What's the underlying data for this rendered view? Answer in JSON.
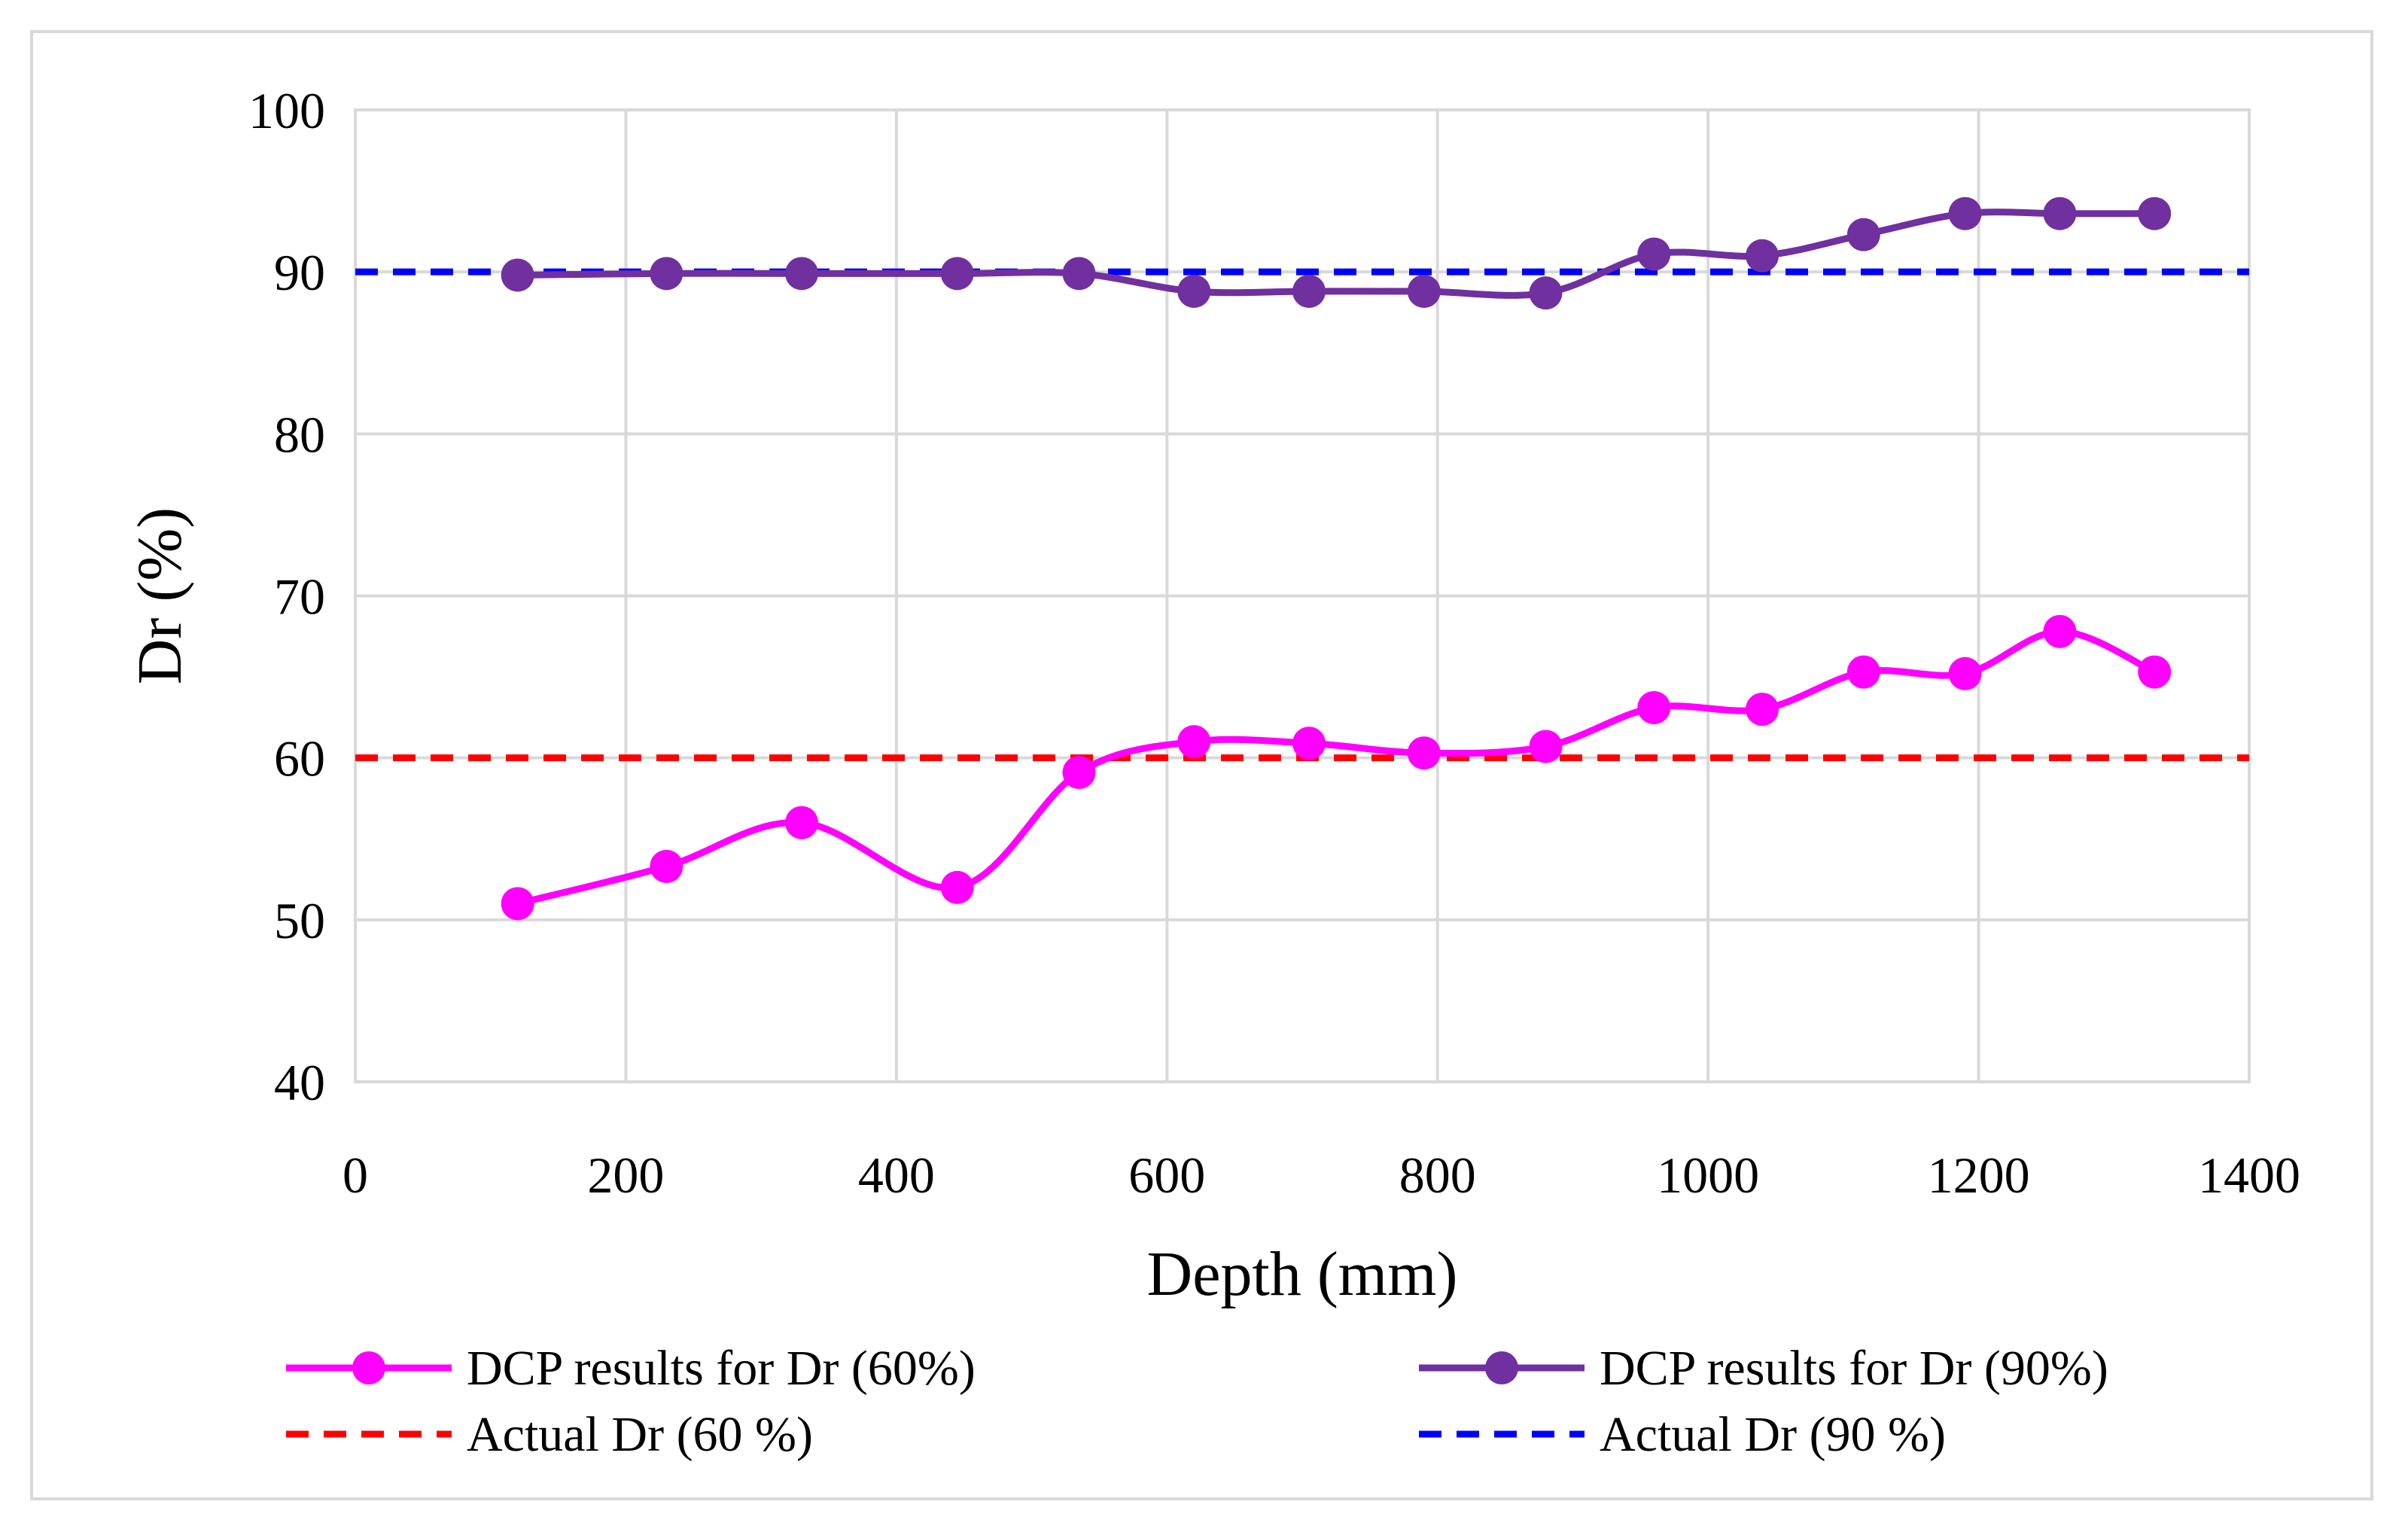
{
  "chart_data": {
    "type": "line",
    "xlabel": "Depth (mm)",
    "ylabel": "Dr (%)",
    "xlim": [
      0,
      1400
    ],
    "ylim": [
      40,
      100
    ],
    "x_ticks": [
      0,
      200,
      400,
      600,
      800,
      1000,
      1200,
      1400
    ],
    "y_ticks": [
      40,
      50,
      60,
      70,
      80,
      90,
      100
    ],
    "grid": true,
    "legend_position": "bottom",
    "series": [
      {
        "name": "DCP results for Dr (60%)",
        "style": "smooth-line-markers",
        "color": "#ff00ff",
        "x": [
          120,
          230,
          330,
          445,
          535,
          620,
          705,
          790,
          880,
          960,
          1040,
          1115,
          1190,
          1260,
          1330
        ],
        "y": [
          51.0,
          53.3,
          56.0,
          52.0,
          59.1,
          61.0,
          60.9,
          60.3,
          60.7,
          63.1,
          63.0,
          65.3,
          65.2,
          67.8,
          65.3
        ]
      },
      {
        "name": "DCP results for Dr (90%)",
        "style": "smooth-line-markers",
        "color": "#7030a0",
        "x": [
          120,
          230,
          330,
          445,
          535,
          620,
          705,
          790,
          880,
          960,
          1040,
          1115,
          1190,
          1260,
          1330
        ],
        "y": [
          89.8,
          89.9,
          89.9,
          89.9,
          89.9,
          88.8,
          88.8,
          88.8,
          88.7,
          91.1,
          91.0,
          92.3,
          93.6,
          93.6,
          93.6
        ]
      },
      {
        "name": "Actual Dr (60 %)",
        "style": "dashed",
        "color": "#ff0000",
        "x": [
          0,
          1400
        ],
        "y": [
          60,
          60
        ]
      },
      {
        "name": "Actual Dr (90 %)",
        "style": "dashed",
        "color": "#0000ff",
        "x": [
          0,
          1400
        ],
        "y": [
          90,
          90
        ]
      }
    ]
  }
}
